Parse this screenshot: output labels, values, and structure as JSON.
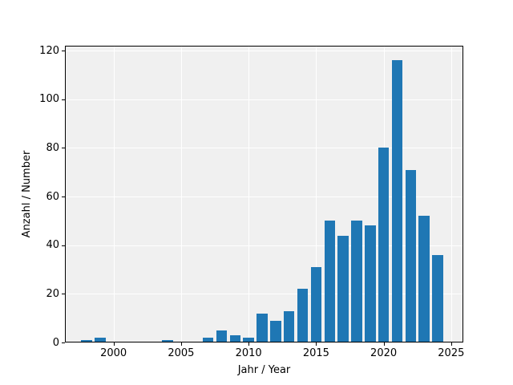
{
  "chart_data": {
    "type": "bar",
    "title": "",
    "xlabel": "Jahr / Year",
    "ylabel": "Anzahl / Number",
    "x": [
      1998,
      1999,
      2004,
      2007,
      2008,
      2009,
      2010,
      2011,
      2012,
      2013,
      2014,
      2015,
      2016,
      2017,
      2018,
      2019,
      2020,
      2021,
      2022,
      2023,
      2024
    ],
    "values": [
      1,
      2,
      1,
      2,
      5,
      3,
      2,
      12,
      9,
      13,
      22,
      31,
      50,
      44,
      50,
      48,
      80,
      116,
      71,
      52,
      36
    ],
    "xticks": [
      2000,
      2005,
      2010,
      2015,
      2020,
      2025
    ],
    "yticks": [
      0,
      20,
      40,
      60,
      80,
      100,
      120
    ],
    "xlim": [
      1996.4,
      2025.9
    ],
    "ylim": [
      0,
      122
    ],
    "bar_width": 0.8,
    "grid": true,
    "legend": "none",
    "bar_color": "#1f77b4",
    "plot_bg_color": "#f0f0f0",
    "grid_color": "#ffffff",
    "figure_bg_color": "#ffffff",
    "spine_color": "#000000",
    "text_color": "#000000"
  }
}
